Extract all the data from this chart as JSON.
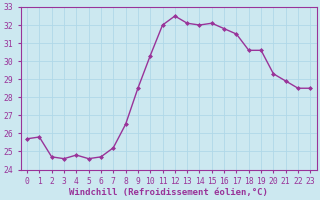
{
  "x": [
    0,
    1,
    2,
    3,
    4,
    5,
    6,
    7,
    8,
    9,
    10,
    11,
    12,
    13,
    14,
    15,
    16,
    17,
    18,
    19,
    20,
    21,
    22,
    23
  ],
  "y": [
    25.7,
    25.8,
    24.7,
    24.6,
    24.8,
    24.6,
    24.7,
    25.2,
    26.5,
    28.5,
    30.3,
    32.0,
    32.5,
    32.1,
    32.0,
    32.1,
    31.8,
    31.5,
    30.6,
    30.6,
    29.3,
    28.9,
    28.5,
    28.5
  ],
  "line_color": "#993399",
  "marker": "D",
  "marker_size": 2.0,
  "bg_color": "#cce8f0",
  "grid_color": "#b0d8e8",
  "ylim": [
    24,
    33
  ],
  "xlim": [
    -0.5,
    23.5
  ],
  "yticks": [
    24,
    25,
    26,
    27,
    28,
    29,
    30,
    31,
    32,
    33
  ],
  "xticks": [
    0,
    1,
    2,
    3,
    4,
    5,
    6,
    7,
    8,
    9,
    10,
    11,
    12,
    13,
    14,
    15,
    16,
    17,
    18,
    19,
    20,
    21,
    22,
    23
  ],
  "xlabel": "Windchill (Refroidissement éolien,°C)",
  "xlabel_color": "#993399",
  "tick_color": "#993399",
  "axis_label_fontsize": 6.5,
  "tick_fontsize": 5.8,
  "line_width": 1.0
}
